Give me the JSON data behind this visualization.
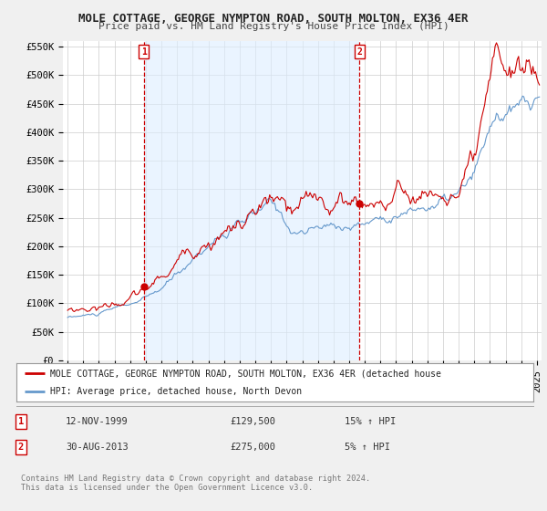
{
  "title": "MOLE COTTAGE, GEORGE NYMPTON ROAD, SOUTH MOLTON, EX36 4ER",
  "subtitle": "Price paid vs. HM Land Registry's House Price Index (HPI)",
  "ylabel_ticks": [
    "£0",
    "£50K",
    "£100K",
    "£150K",
    "£200K",
    "£250K",
    "£300K",
    "£350K",
    "£400K",
    "£450K",
    "£500K",
    "£550K"
  ],
  "ytick_vals": [
    0,
    50000,
    100000,
    150000,
    200000,
    250000,
    300000,
    350000,
    400000,
    450000,
    500000,
    550000
  ],
  "ylim": [
    0,
    560000
  ],
  "xlim_start": 1994.7,
  "xlim_end": 2025.3,
  "red_color": "#cc0000",
  "blue_color": "#6699cc",
  "shade_color": "#ddeeff",
  "background_color": "#f0f0f0",
  "plot_bg_color": "#ffffff",
  "grid_color": "#cccccc",
  "marker1_x": 1999.87,
  "marker1_y": 129500,
  "marker2_x": 2013.66,
  "marker2_y": 275000,
  "legend_line1": "MOLE COTTAGE, GEORGE NYMPTON ROAD, SOUTH MOLTON, EX36 4ER (detached house",
  "legend_line2": "HPI: Average price, detached house, North Devon",
  "table_row1": [
    "1",
    "12-NOV-1999",
    "£129,500",
    "15% ↑ HPI"
  ],
  "table_row2": [
    "2",
    "30-AUG-2013",
    "£275,000",
    "5% ↑ HPI"
  ],
  "footer": "Contains HM Land Registry data © Crown copyright and database right 2024.\nThis data is licensed under the Open Government Licence v3.0.",
  "title_fontsize": 9,
  "subtitle_fontsize": 8,
  "tick_fontsize": 7.5,
  "annotation_fontsize": 7.5
}
